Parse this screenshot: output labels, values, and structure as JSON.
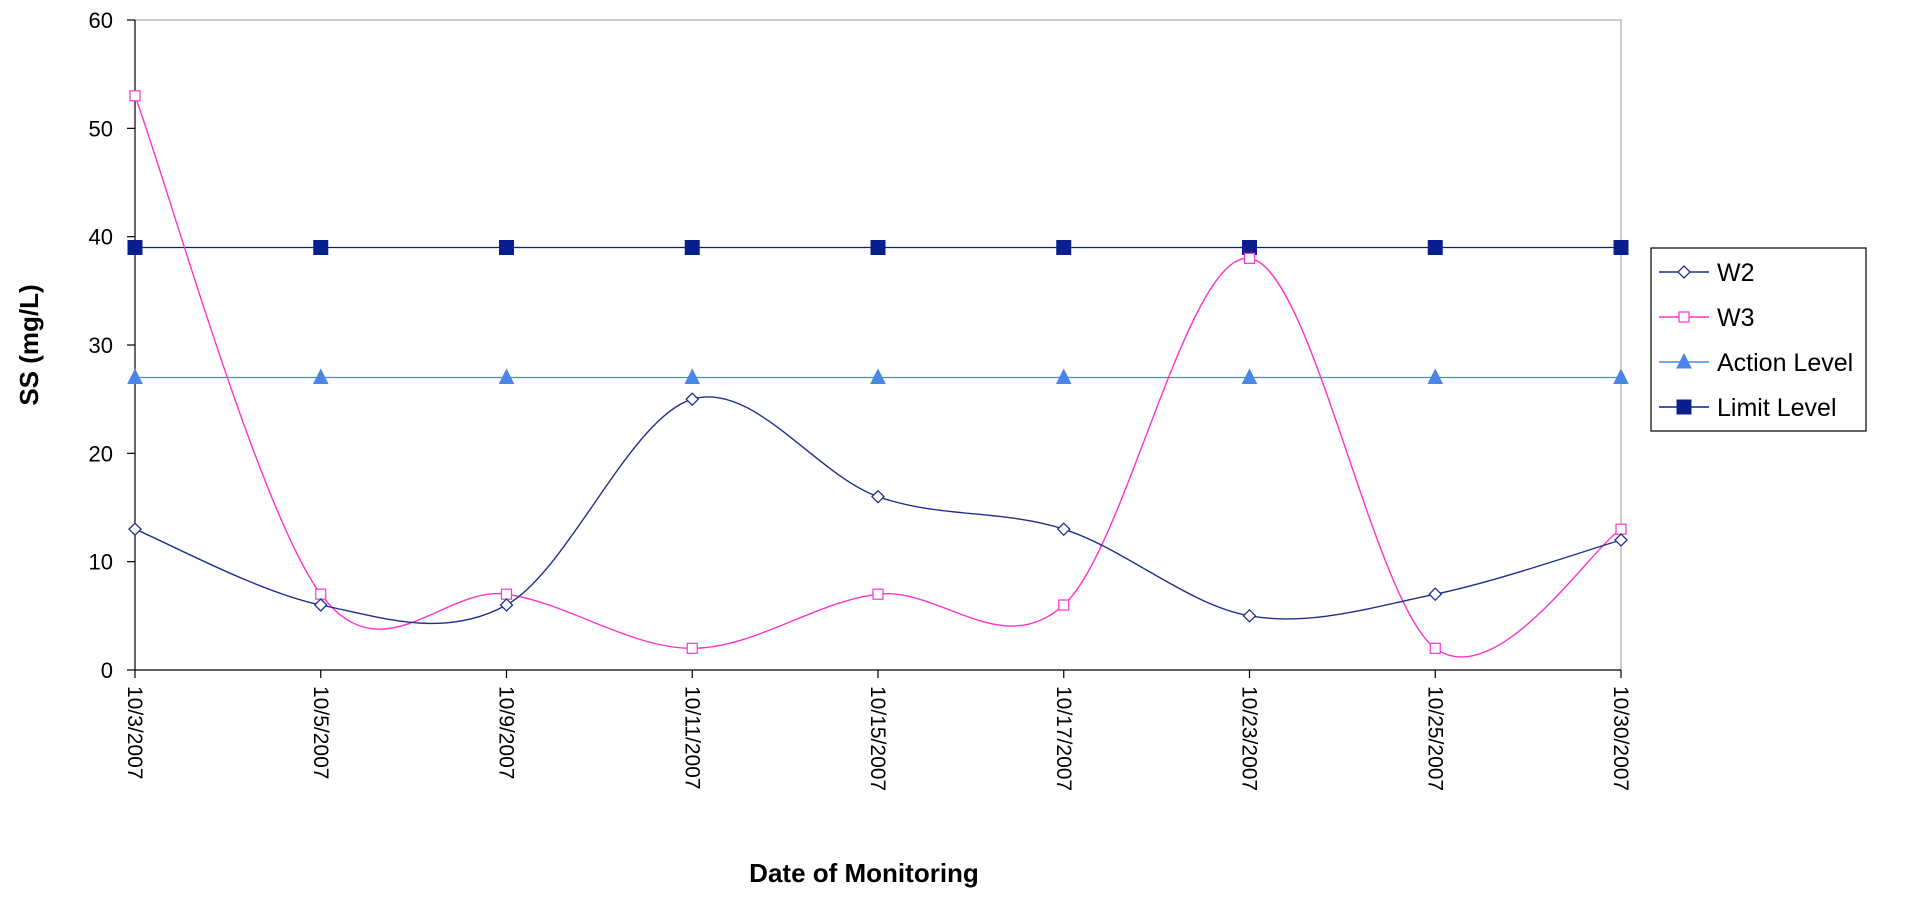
{
  "chart_data": {
    "type": "line",
    "title": "",
    "xlabel": "Date of Monitoring",
    "ylabel": "SS (mg/L)",
    "categories": [
      "10/3/2007",
      "10/5/2007",
      "10/9/2007",
      "10/11/2007",
      "10/15/2007",
      "10/17/2007",
      "10/23/2007",
      "10/25/2007",
      "10/30/2007"
    ],
    "ylim": [
      0,
      60
    ],
    "yticks": [
      0,
      10,
      20,
      30,
      40,
      50,
      60
    ],
    "smoothed": true,
    "grid": false,
    "legend_position": "right",
    "series": [
      {
        "name": "W2",
        "values": [
          13,
          6,
          6,
          25,
          16,
          13,
          5,
          7,
          12
        ],
        "color": "#1f2f8f",
        "marker": "diamond"
      },
      {
        "name": "W3",
        "values": [
          53,
          7,
          7,
          2,
          7,
          6,
          38,
          2,
          13
        ],
        "color": "#ff33cc",
        "marker": "square-open"
      },
      {
        "name": "Action Level",
        "values": [
          27,
          27,
          27,
          27,
          27,
          27,
          27,
          27,
          27
        ],
        "color": "#4a86e8",
        "marker": "triangle"
      },
      {
        "name": "Limit Level",
        "values": [
          39,
          39,
          39,
          39,
          39,
          39,
          39,
          39,
          39
        ],
        "color": "#0a1f8f",
        "marker": "square-filled"
      }
    ]
  }
}
